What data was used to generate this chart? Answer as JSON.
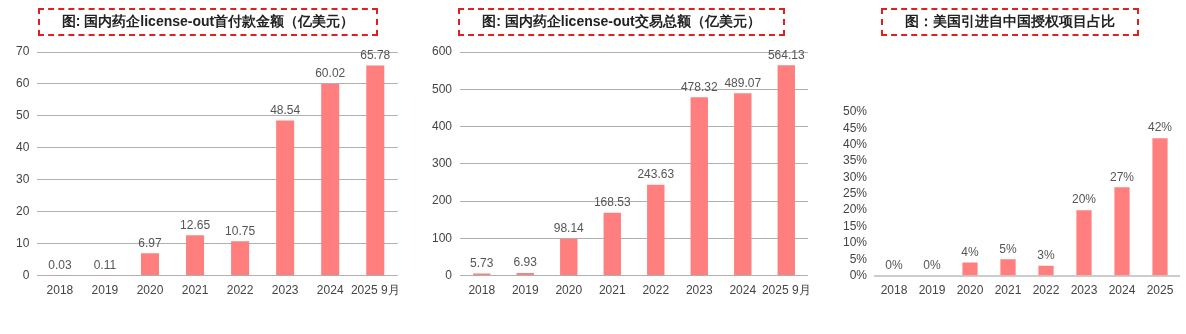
{
  "chart_data": [
    {
      "type": "bar",
      "title": "图: 国内药企license-out首付款金额（亿美元）",
      "categories": [
        "2018",
        "2019",
        "2020",
        "2021",
        "2022",
        "2023",
        "2024",
        "2025 9月"
      ],
      "values": [
        0.03,
        0.11,
        6.97,
        12.65,
        10.75,
        48.54,
        60.02,
        65.78
      ],
      "color": "#ff7f7f",
      "ylim": [
        0,
        70
      ],
      "yticks": [
        0,
        10,
        20,
        30,
        40,
        50,
        60,
        70
      ],
      "grid": "y",
      "data_labels": true
    },
    {
      "type": "bar",
      "title": "图: 国内药企license-out交易总额（亿美元）",
      "categories": [
        "2018",
        "2019",
        "2020",
        "2021",
        "2022",
        "2023",
        "2024",
        "2025 9月"
      ],
      "values": [
        5.73,
        6.93,
        98.14,
        168.53,
        243.63,
        478.32,
        489.07,
        564.13
      ],
      "color": "#ff7f7f",
      "ylim": [
        0,
        600
      ],
      "yticks": [
        0,
        100,
        200,
        300,
        400,
        500,
        600
      ],
      "grid": "y",
      "data_labels": true
    },
    {
      "type": "bar",
      "title": "图：美国引进自中国授权项目占比",
      "categories": [
        "2018",
        "2019",
        "2020",
        "2021",
        "2022",
        "2023",
        "2024",
        "2025"
      ],
      "values": [
        0,
        0,
        4,
        5,
        3,
        20,
        27,
        42
      ],
      "value_labels": [
        "0%",
        "0%",
        "4%",
        "5%",
        "3%",
        "20%",
        "27%",
        "42%"
      ],
      "color": "#ff7f7f",
      "ylim": [
        0,
        50
      ],
      "yticks": [
        {
          "value": 0,
          "label": "0%"
        },
        {
          "value": 5,
          "label": "5%"
        },
        {
          "value": 10,
          "label": "10%"
        },
        {
          "value": 15,
          "label": "15%"
        },
        {
          "value": 20,
          "label": "20%"
        },
        {
          "value": 25,
          "label": "25%"
        },
        {
          "value": 30,
          "label": "30%"
        },
        {
          "value": 35,
          "label": "35%"
        },
        {
          "value": 40,
          "label": "40%"
        },
        {
          "value": 45,
          "label": "45%"
        },
        {
          "value": 50,
          "label": "50%"
        }
      ]
    }
  ]
}
